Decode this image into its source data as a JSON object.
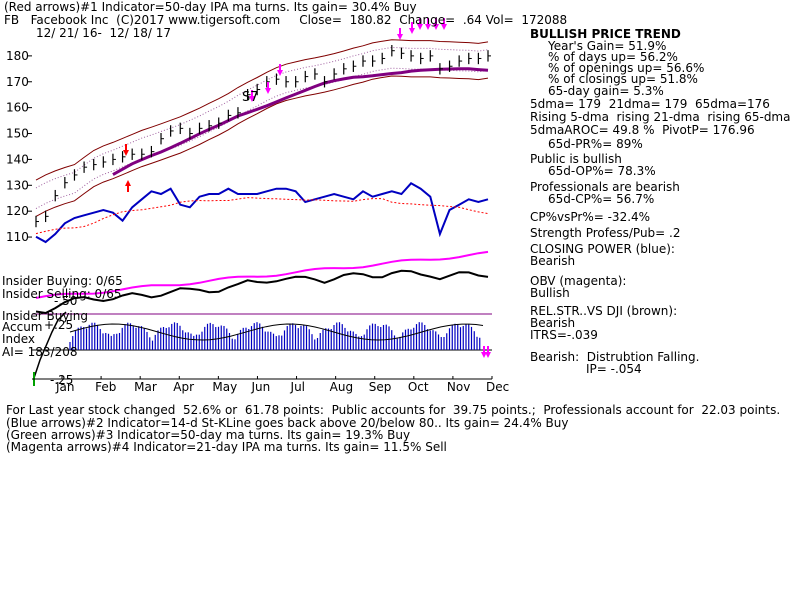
{
  "header": {
    "line1": "(Red arrows)#1 Indicator=50-day IPA ma turns. Its gain= 30.4% Buy",
    "line2": "FB   Facebook Inc  (C)2017 www.tigersoft.com     Close=  180.82  Change=  .64 Vol=  172088",
    "line3": "12/ 21/ 16-  12/ 18/ 17"
  },
  "chart_data": {
    "type": "line",
    "ylim": [
      105,
      190
    ],
    "yticks": [
      110,
      120,
      130,
      140,
      150,
      160,
      170,
      180
    ],
    "x_labels": [
      "Jan",
      "Feb",
      "Mar",
      "Apr",
      "May",
      "Jun",
      "Jul",
      "Aug",
      "Sep",
      "Oct",
      "Nov",
      "Dec"
    ],
    "price_close": [
      116,
      118,
      126,
      131,
      134,
      137,
      138,
      139,
      140,
      141,
      142,
      142,
      143,
      148,
      151,
      152,
      150,
      152,
      153,
      154,
      157,
      158,
      165,
      167,
      170,
      171,
      170,
      170,
      172,
      173,
      170,
      173,
      175,
      176,
      178,
      178,
      179,
      182,
      181,
      180,
      179,
      180,
      175,
      176,
      178,
      179,
      179,
      180
    ],
    "closing_power": [
      110,
      108,
      111,
      115,
      117,
      118,
      119,
      120,
      119,
      116,
      121,
      124,
      127,
      126,
      128,
      122,
      121,
      125,
      126,
      126,
      128,
      126,
      126,
      126,
      127,
      128,
      128,
      127,
      123,
      124,
      125,
      126,
      125,
      124,
      127,
      125,
      126,
      127,
      126,
      130,
      128,
      125,
      111,
      120,
      122,
      124,
      123,
      124
    ],
    "annotations": [
      "S7"
    ],
    "panels": [
      "price",
      "closing power",
      "relative strength",
      "OBV",
      "accumulation index"
    ],
    "colors": {
      "price_bars": "#000000",
      "moving_avg_65": "#800080",
      "band": "#800000",
      "closing_power": "#0000c0",
      "obv": "#ff00ff",
      "accum": "#0000c0",
      "arrow_red": "#ff0000",
      "arrow_magenta": "#ff00ff"
    }
  },
  "panel_labels": {
    "insider_buying_1": "Insider Buying: 0/65",
    "insider_selling": "Insider Selling: 0/65",
    "insider_buying_2": "Insider Buying",
    "accum": "Accum",
    "plus25": "+.25",
    "index": "Index",
    "ai": "AI= 183/208",
    "minus50": "-.50",
    "minus25": "-.25"
  },
  "side_panel": {
    "trend_title": "BULLISH PRICE TREND",
    "year_gain": "Year's Gain= 51.9%",
    "days_up": "% of days up= 56.2%",
    "openings_up": "% of openings up= 56.6%",
    "closings_up": "% of closings up= 51.8%",
    "gain65": "65-day gain= 5.3%",
    "dma": "5dma= 179  21dma= 179  65dma=176",
    "rising": "Rising 5-dma  rising 21-dma  rising 65-dma",
    "aroc": "5dmaAROC= 49.8 %  PivotP= 176.96",
    "pr": "65d-PR%= 89%",
    "public": "Public is bullish",
    "op": "65d-OP%= 78.3%",
    "professionals": "Professionals are bearish",
    "cp": "65d-CP%= 56.7%",
    "cpvspr": "CP%vsPr%= -32.4%",
    "strength": "Strength Profess/Pub= .2",
    "closing_power": "CLOSING POWER (blue):",
    "cp_bearish": "Bearish",
    "obv": "OBV (magenta):",
    "obv_bullish": "Bullish",
    "relstr": "REL.STR..VS DJI (brown):",
    "rel_bearish": "Bearish",
    "itrs": "ITRS=-.039",
    "distribution": "Bearish:  Distrubtion Falling.",
    "ip": "IP= -.054"
  },
  "footer": {
    "line1": "For Last year stock changed  52.6% or  61.78 points:  Public accounts for  39.75 points.;  Professionals account for  22.03 points.",
    "line2": "(Blue arrows)#2 Indicator=14-d St-KLine goes back above 20/below 80.. Its gain= 24.4% Buy",
    "line3": "(Green arrows)#3 Indicator=50-day ma turns. Its gain= 19.3% Buy",
    "line4": "(Magenta arrows)#4 Indicator=21-day IPA ma turns. Its gain= 11.5% Sell"
  }
}
